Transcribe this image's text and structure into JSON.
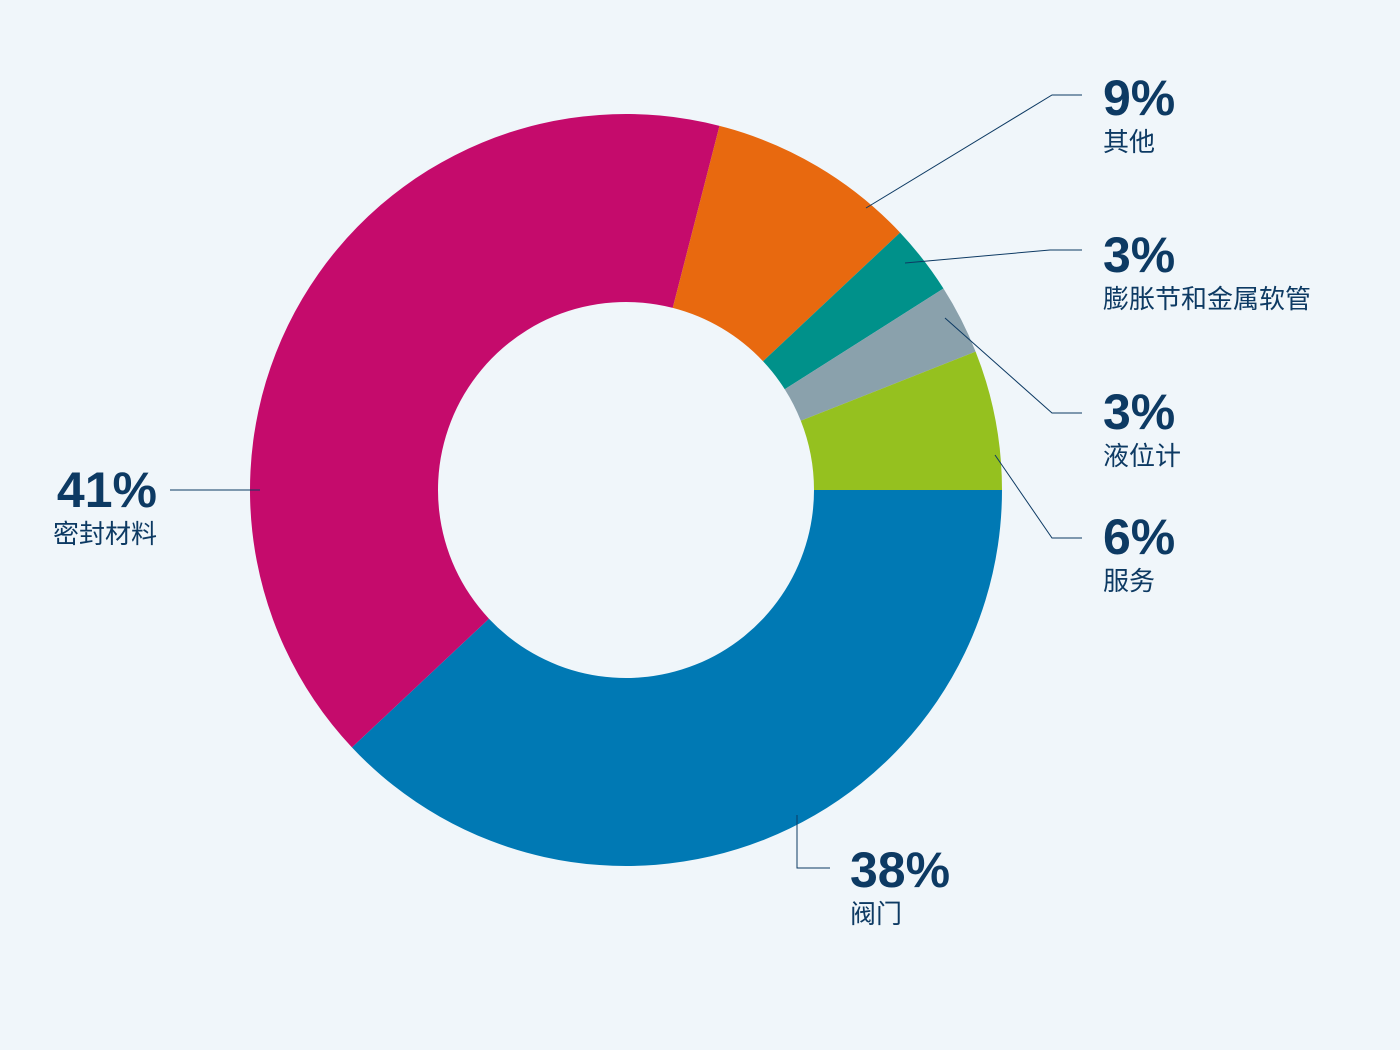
{
  "chart_data": {
    "type": "donut",
    "categories": [
      "阀门",
      "密封材料",
      "其他",
      "膨胀节和金属软管",
      "液位计",
      "服务"
    ],
    "values": [
      38,
      41,
      9,
      3,
      3,
      6
    ],
    "value_labels": [
      "38%",
      "41%",
      "9%",
      "3%",
      "3%",
      "6%"
    ],
    "colors": [
      "#0079b4",
      "#c50b6c",
      "#e8690f",
      "#00918a",
      "#8aa1ac",
      "#95c11f"
    ]
  }
}
